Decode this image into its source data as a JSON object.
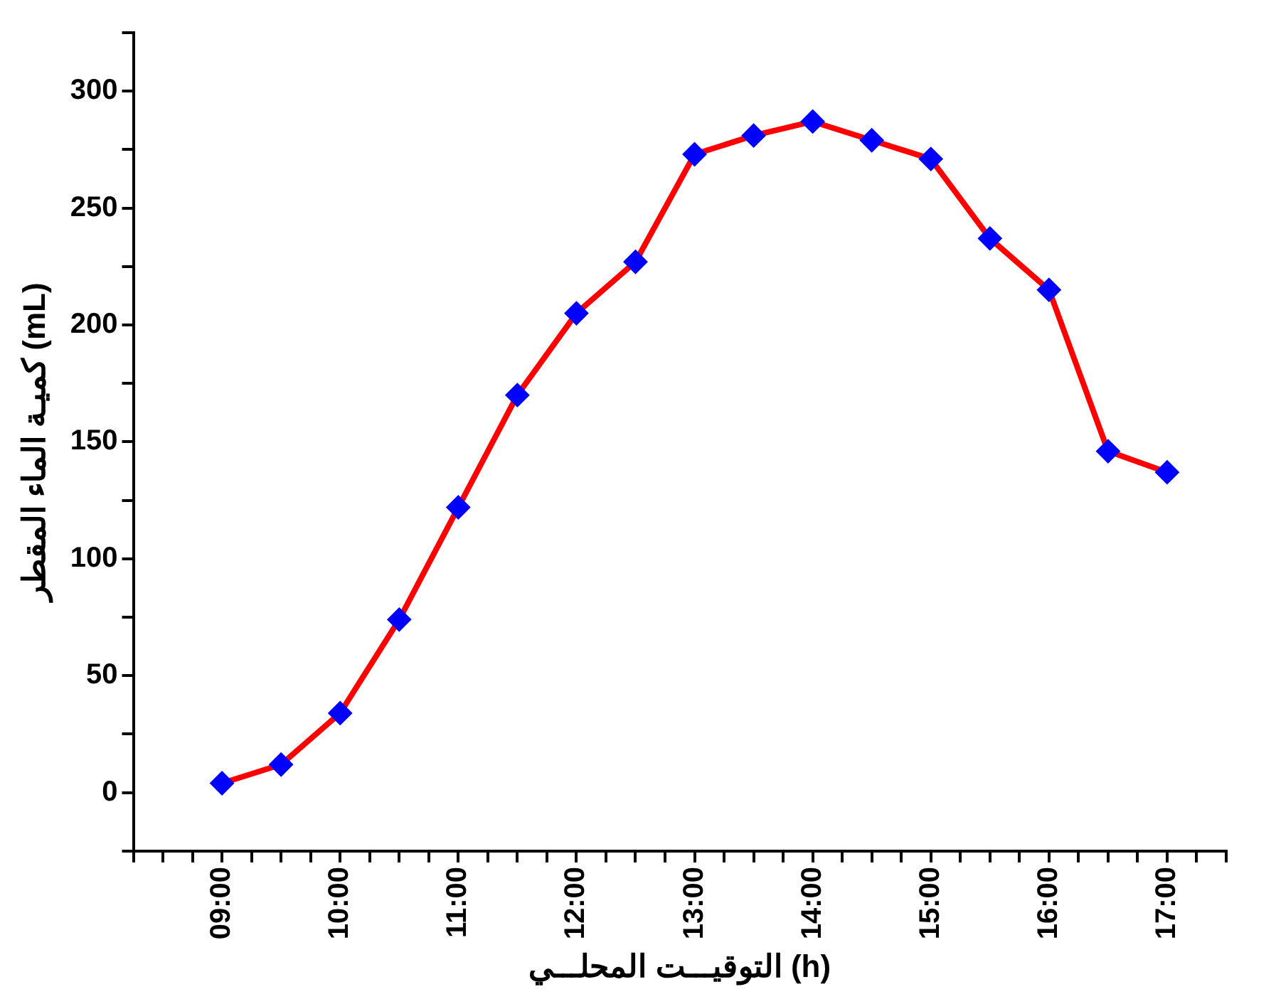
{
  "chart_data": {
    "type": "line",
    "xlabel": "التوقيـــت المحلـــي (h)",
    "ylabel": "كميـة الماء المقطر (mL)",
    "x": [
      9,
      9.5,
      10,
      10.5,
      11,
      11.5,
      12,
      12.5,
      13,
      13.5,
      14,
      14.5,
      15,
      15.5,
      16,
      16.5,
      17
    ],
    "series": [
      {
        "color": "#ff0000",
        "colors": [
          "#0000ff",
          "#0000ff",
          "#0000ff",
          "#0000ff",
          "#0000ff",
          "#0000ff",
          "#0000ff",
          "#0000ff",
          "#0000ff",
          "#0000ff",
          "#0000ff",
          "#0000ff",
          "#0000ff",
          "#0000ff",
          "#0000ff",
          "#0000ff",
          "#0000ff"
        ],
        "values": [
          4,
          12,
          34,
          74,
          122,
          170,
          205,
          227,
          273,
          281,
          287,
          279,
          271,
          237,
          215,
          146,
          137
        ]
      }
    ],
    "marker": "diamond",
    "line_style": "solid",
    "xlim": [
      8.25,
      17.5
    ],
    "xticks": [
      {
        "value": 8.25,
        "label": null
      },
      {
        "value": 8.5,
        "label": null
      },
      {
        "value": 8.75,
        "label": null
      },
      {
        "value": 9,
        "label": "09:00"
      },
      {
        "value": 9.25,
        "label": null
      },
      {
        "value": 9.5,
        "label": null
      },
      {
        "value": 9.75,
        "label": null
      },
      {
        "value": 10,
        "label": "10:00"
      },
      {
        "value": 10.25,
        "label": null
      },
      {
        "value": 10.5,
        "label": null
      },
      {
        "value": 10.75,
        "label": null
      },
      {
        "value": 11,
        "label": "11:00"
      },
      {
        "value": 11.25,
        "label": null
      },
      {
        "value": 11.5,
        "label": null
      },
      {
        "value": 11.75,
        "label": null
      },
      {
        "value": 12,
        "label": "12:00"
      },
      {
        "value": 12.25,
        "label": null
      },
      {
        "value": 12.5,
        "label": null
      },
      {
        "value": 12.75,
        "label": null
      },
      {
        "value": 13,
        "label": "13:00"
      },
      {
        "value": 13.25,
        "label": null
      },
      {
        "value": 13.5,
        "label": null
      },
      {
        "value": 13.75,
        "label": null
      },
      {
        "value": 14,
        "label": "14:00"
      },
      {
        "value": 14.25,
        "label": null
      },
      {
        "value": 14.5,
        "label": null
      },
      {
        "value": 14.75,
        "label": null
      },
      {
        "value": 15,
        "label": "15:00"
      },
      {
        "value": 15.25,
        "label": null
      },
      {
        "value": 15.5,
        "label": null
      },
      {
        "value": 15.75,
        "label": null
      },
      {
        "value": 16,
        "label": "16:00"
      },
      {
        "value": 16.25,
        "label": null
      },
      {
        "value": 16.5,
        "label": null
      },
      {
        "value": 16.75,
        "label": null
      },
      {
        "value": 17,
        "label": "17:00"
      },
      {
        "value": 17.25,
        "label": null
      },
      {
        "value": 17.5,
        "label": null
      }
    ],
    "ylim": [
      -25,
      325
    ],
    "yticks": [
      {
        "value": -25,
        "label": null
      },
      0,
      {
        "value": 25,
        "label": null
      },
      50,
      {
        "value": 75,
        "label": null
      },
      100,
      {
        "value": 125,
        "label": null
      },
      150,
      {
        "value": 175,
        "label": null
      },
      200,
      {
        "value": 225,
        "label": null
      },
      250,
      {
        "value": 275,
        "label": null
      },
      300,
      {
        "value": 325,
        "label": null
      }
    ],
    "legend": false
  }
}
